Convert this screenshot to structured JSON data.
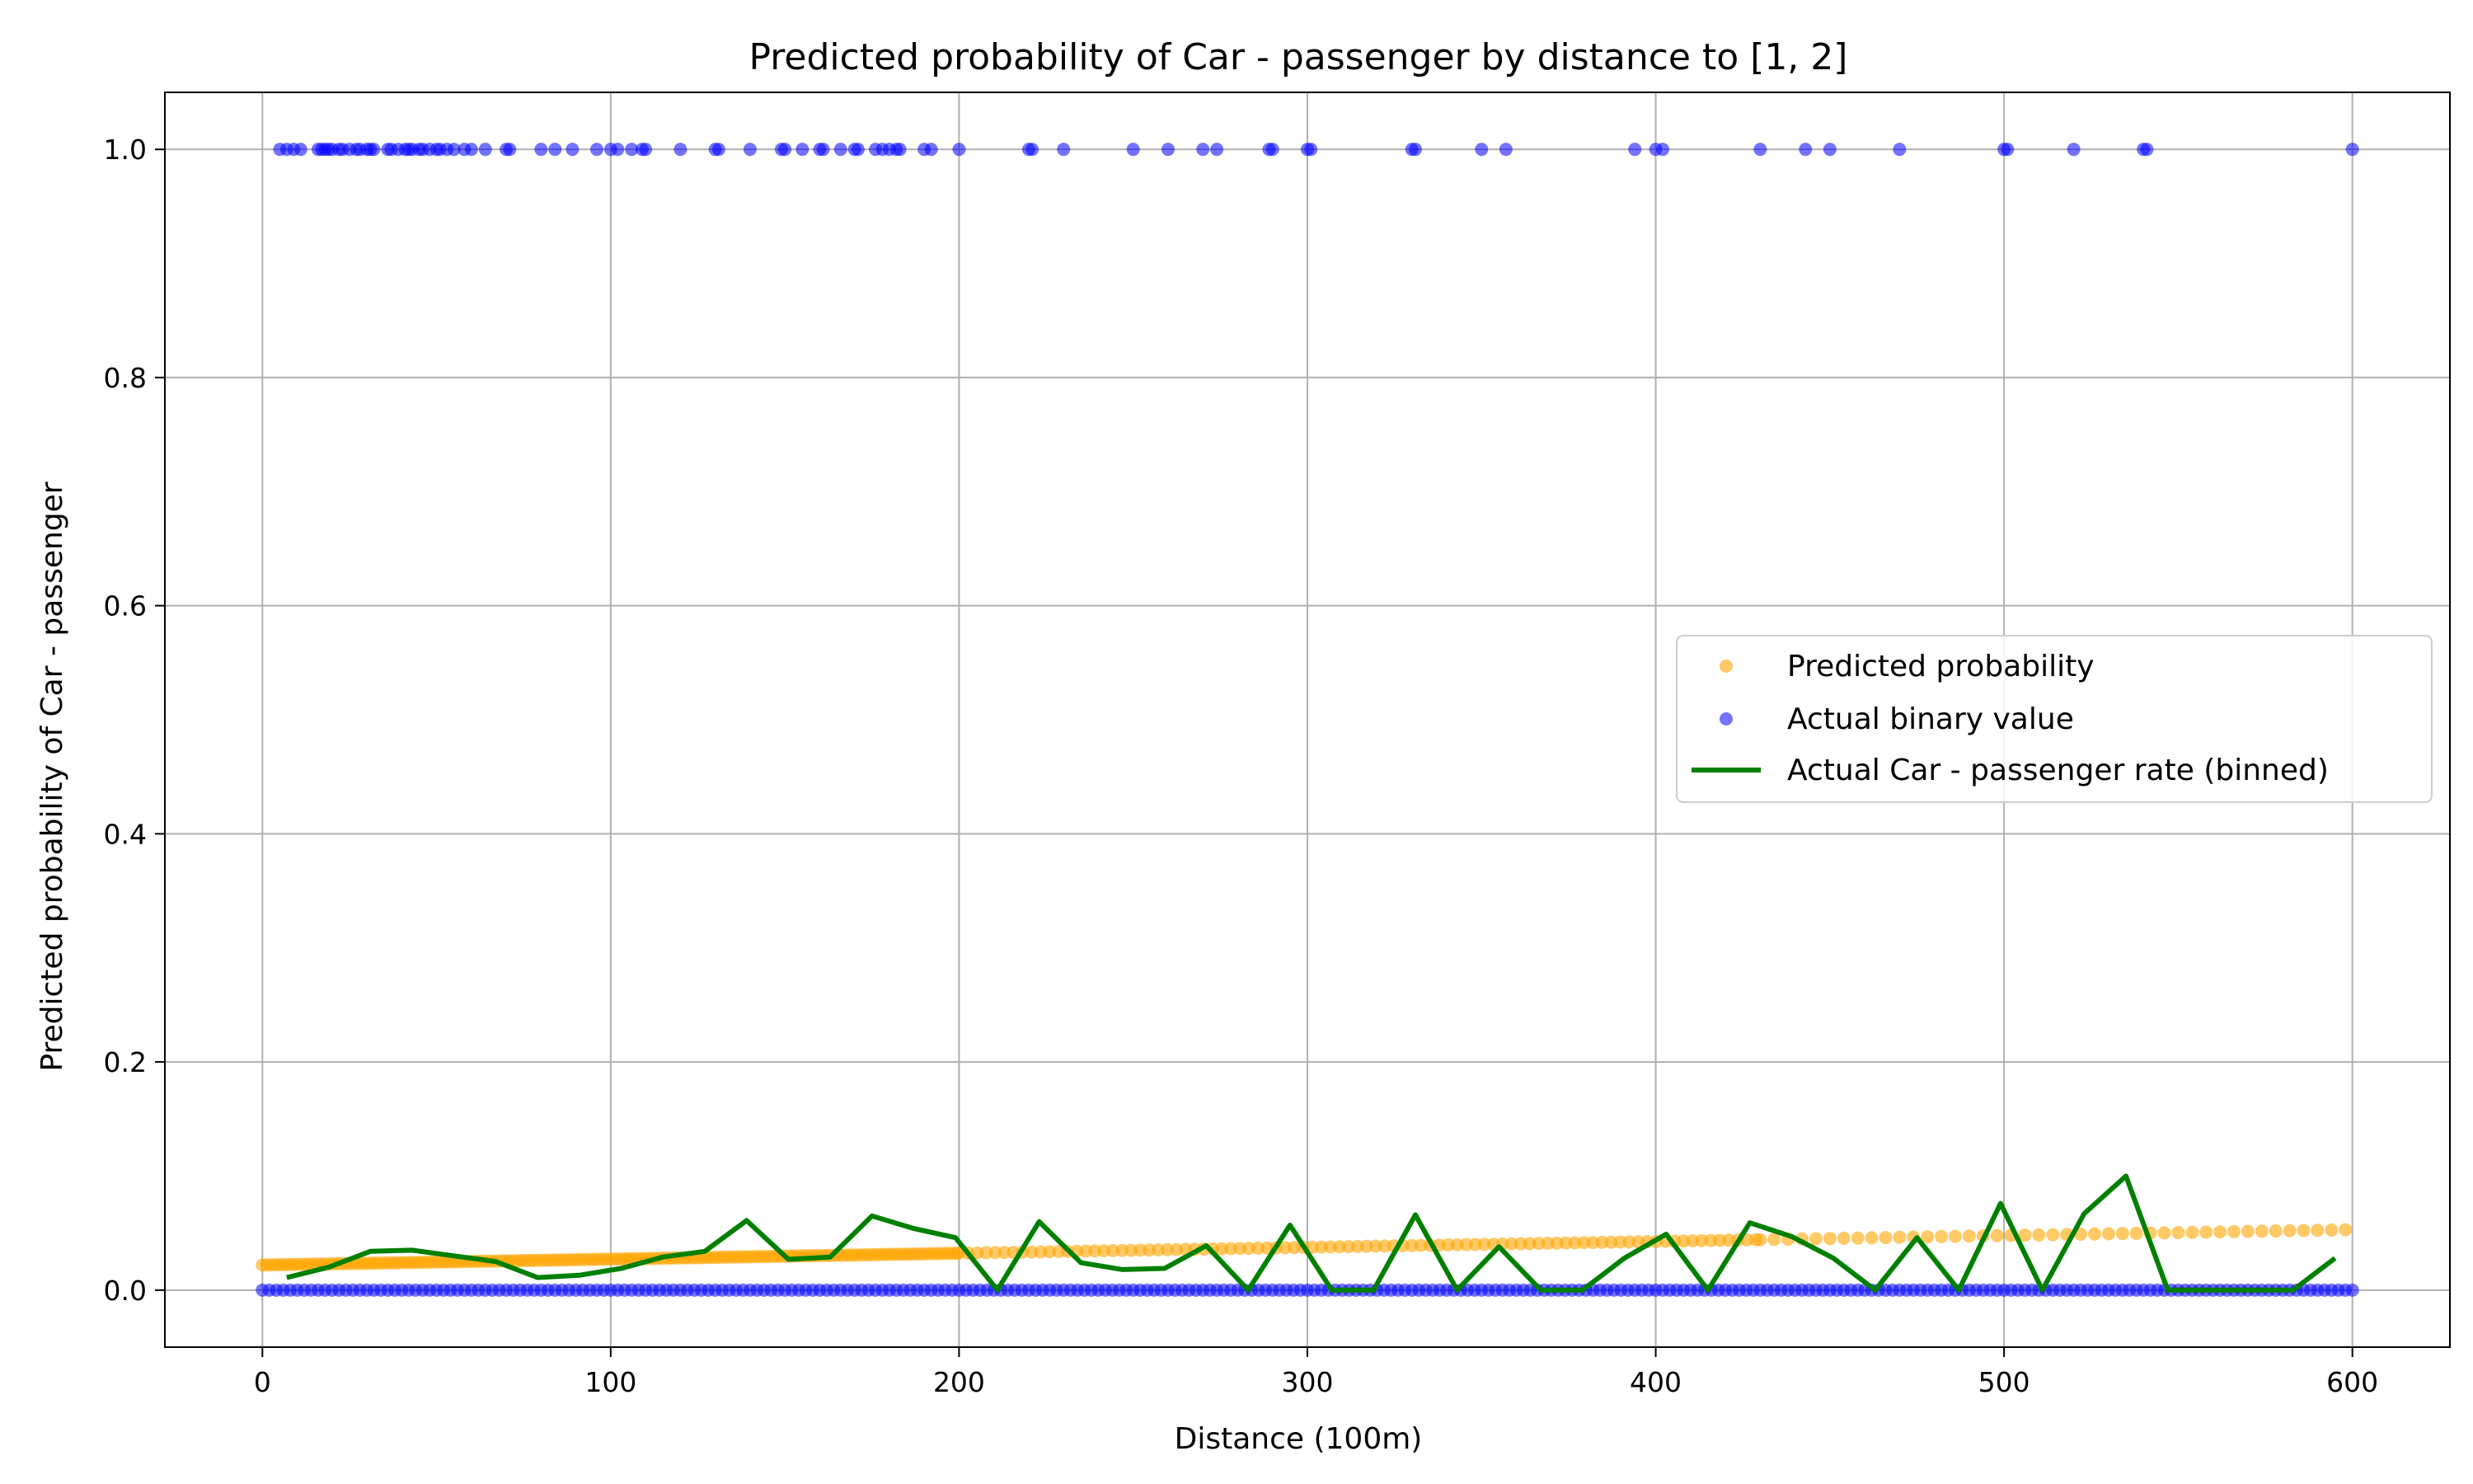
{
  "chart_data": {
    "type": "scatter",
    "title": "Predicted probability of Car - passenger by distance to [1, 2]",
    "xlabel": "Distance (100m)",
    "ylabel": "Predicted probability of Car - passenger",
    "xlim": [
      -28,
      628
    ],
    "ylim": [
      -0.05,
      1.05
    ],
    "x_ticks": [
      0,
      100,
      200,
      300,
      400,
      500,
      600
    ],
    "y_ticks": [
      0.0,
      0.2,
      0.4,
      0.6,
      0.8,
      1.0
    ],
    "x_tick_labels": [
      "0",
      "100",
      "200",
      "300",
      "400",
      "500",
      "600"
    ],
    "y_tick_labels": [
      "0.0",
      "0.2",
      "0.4",
      "0.6",
      "0.8",
      "1.0"
    ],
    "grid": true,
    "legend_position": "center-right",
    "colors": {
      "predicted": "#ffa500",
      "actual": "#0000ff",
      "binned": "#008000",
      "grid": "#b0b0b0"
    },
    "series": [
      {
        "name": "Predicted probability",
        "kind": "scatter",
        "trend": {
          "x_start": 0,
          "x_end": 600,
          "y_start": 0.022,
          "y_end": 0.053
        }
      },
      {
        "name": "Actual binary value",
        "kind": "scatter",
        "y_one_x": [
          5,
          7,
          9,
          11,
          16,
          17,
          18,
          19,
          20,
          22,
          23,
          25,
          27,
          28,
          30,
          31,
          32,
          36,
          37,
          39,
          41,
          42,
          43,
          45,
          46,
          48,
          50,
          51,
          53,
          55,
          58,
          60,
          64,
          70,
          71,
          80,
          84,
          89,
          96,
          100,
          102,
          106,
          109,
          110,
          120,
          130,
          131,
          140,
          149,
          150,
          155,
          160,
          161,
          166,
          170,
          171,
          176,
          178,
          180,
          182,
          183,
          190,
          192,
          200,
          220,
          221,
          230,
          250,
          260,
          270,
          274,
          289,
          290,
          300,
          301,
          330,
          331,
          350,
          357,
          394,
          400,
          402,
          430,
          443,
          450,
          470,
          500,
          501,
          520,
          540,
          541,
          600
        ],
        "y_zero_x_range": [
          0,
          600
        ]
      },
      {
        "name": "Actual Car - passenger rate (binned)",
        "kind": "line",
        "x": [
          7,
          19,
          31,
          43,
          55,
          67,
          79,
          91,
          103,
          115,
          127,
          139,
          151,
          163,
          175,
          187,
          199,
          211,
          223,
          235,
          247,
          259,
          271,
          283,
          295,
          307,
          319,
          331,
          343,
          355,
          367,
          379,
          391,
          403,
          415,
          427,
          439,
          451,
          463,
          475,
          487,
          499,
          511,
          523,
          535,
          547,
          559,
          571,
          583,
          595
        ],
        "y": [
          0.011,
          0.02,
          0.034,
          0.035,
          0.03,
          0.025,
          0.011,
          0.013,
          0.019,
          0.029,
          0.034,
          0.061,
          0.027,
          0.029,
          0.065,
          0.054,
          0.046,
          0.0,
          0.06,
          0.024,
          0.018,
          0.019,
          0.039,
          0.0,
          0.057,
          0.0,
          0.0,
          0.066,
          0.0,
          0.038,
          0.0,
          0.0,
          0.028,
          0.049,
          0.0,
          0.059,
          0.047,
          0.028,
          0.0,
          0.046,
          0.0,
          0.076,
          0.0,
          0.067,
          0.1,
          0.0,
          0.0,
          0.0,
          0.0,
          0.028
        ]
      }
    ]
  }
}
